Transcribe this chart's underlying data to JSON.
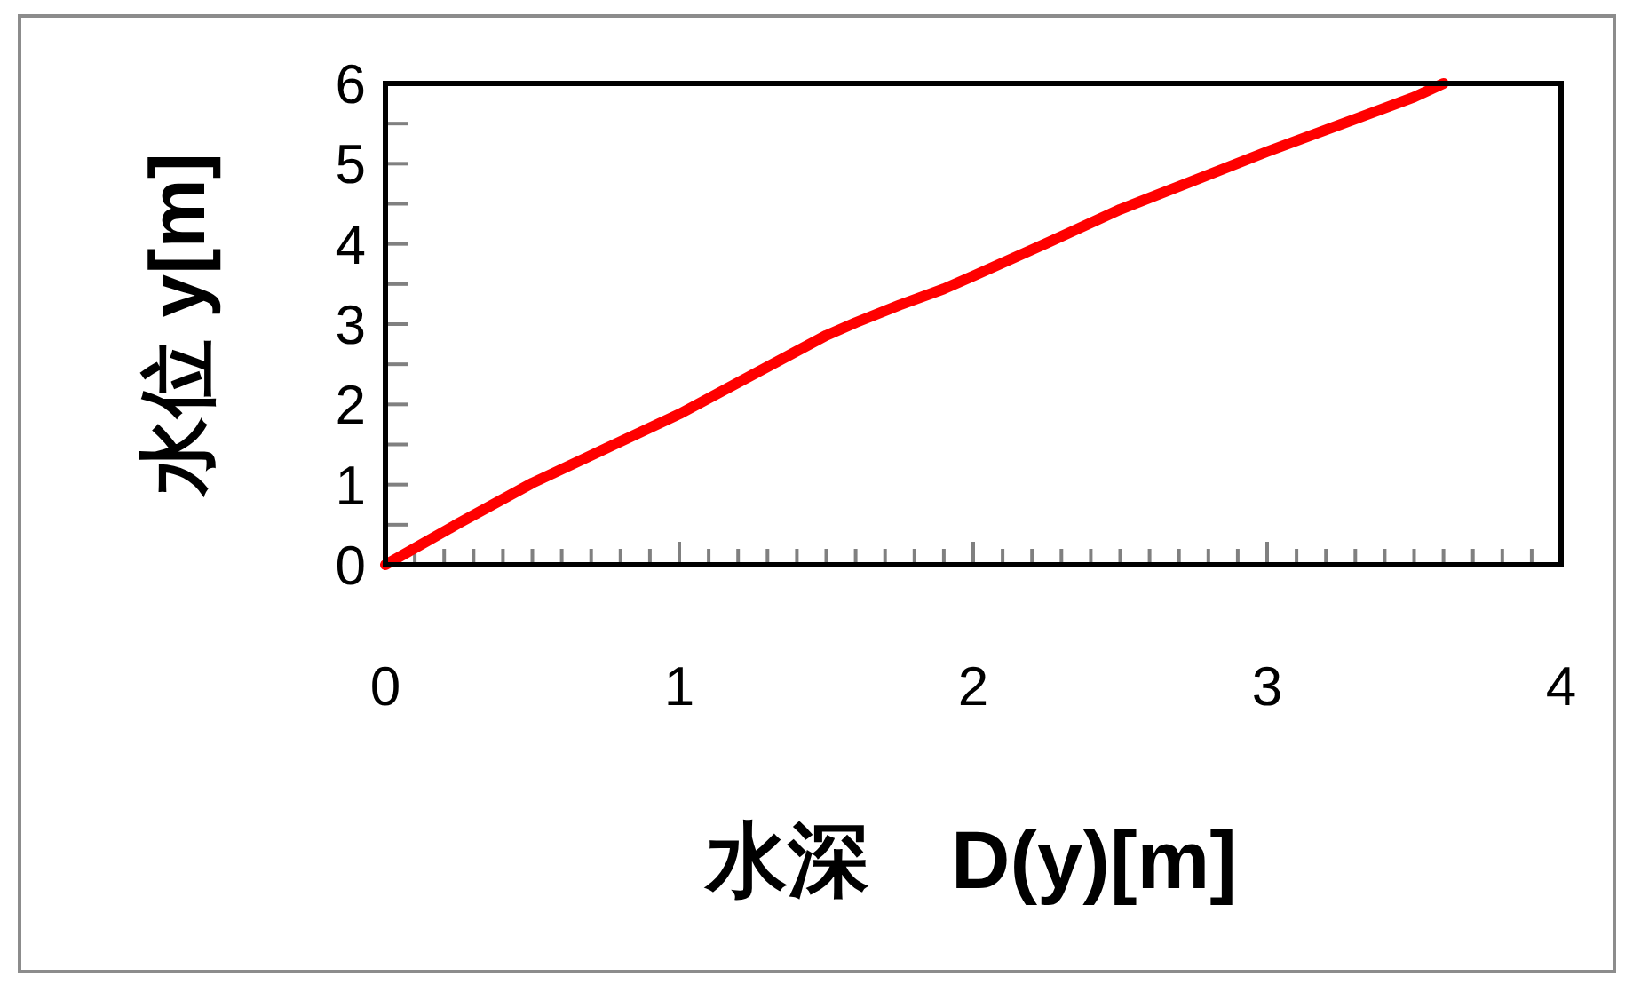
{
  "chart_data": {
    "type": "line",
    "xlabel": "水深　D(y)[m]",
    "ylabel": "水位 y[m]",
    "x": [
      0,
      0.25,
      0.5,
      0.75,
      1.0,
      1.25,
      1.5,
      1.6,
      1.75,
      1.9,
      2.0,
      2.25,
      2.5,
      2.75,
      3.0,
      3.25,
      3.5,
      3.6
    ],
    "series": [
      {
        "color": "#ff0000",
        "values": [
          0,
          0.52,
          1.02,
          1.45,
          1.88,
          2.37,
          2.86,
          3.02,
          3.24,
          3.44,
          3.6,
          4.01,
          4.43,
          4.79,
          5.15,
          5.49,
          5.83,
          6.0
        ]
      }
    ],
    "xlim": [
      0,
      4
    ],
    "ylim": [
      0,
      6
    ],
    "xticks": [
      0,
      {
        "value": 0.1,
        "label": null
      },
      {
        "value": 0.2,
        "label": null
      },
      {
        "value": 0.3,
        "label": null
      },
      {
        "value": 0.4,
        "label": null
      },
      {
        "value": 0.5,
        "label": null
      },
      {
        "value": 0.6,
        "label": null
      },
      {
        "value": 0.7,
        "label": null
      },
      {
        "value": 0.8,
        "label": null
      },
      {
        "value": 0.9,
        "label": null
      },
      1,
      {
        "value": 1.1,
        "label": null
      },
      {
        "value": 1.2,
        "label": null
      },
      {
        "value": 1.3,
        "label": null
      },
      {
        "value": 1.4,
        "label": null
      },
      {
        "value": 1.5,
        "label": null
      },
      {
        "value": 1.6,
        "label": null
      },
      {
        "value": 1.7,
        "label": null
      },
      {
        "value": 1.8,
        "label": null
      },
      {
        "value": 1.9,
        "label": null
      },
      2,
      {
        "value": 2.1,
        "label": null
      },
      {
        "value": 2.2,
        "label": null
      },
      {
        "value": 2.3,
        "label": null
      },
      {
        "value": 2.4,
        "label": null
      },
      {
        "value": 2.5,
        "label": null
      },
      {
        "value": 2.6,
        "label": null
      },
      {
        "value": 2.7,
        "label": null
      },
      {
        "value": 2.8,
        "label": null
      },
      {
        "value": 2.9,
        "label": null
      },
      3,
      {
        "value": 3.1,
        "label": null
      },
      {
        "value": 3.2,
        "label": null
      },
      {
        "value": 3.3,
        "label": null
      },
      {
        "value": 3.4,
        "label": null
      },
      {
        "value": 3.5,
        "label": null
      },
      {
        "value": 3.6,
        "label": null
      },
      {
        "value": 3.7,
        "label": null
      },
      {
        "value": 3.8,
        "label": null
      },
      {
        "value": 3.9,
        "label": null
      },
      4
    ],
    "yticks": [
      0,
      {
        "value": 0.5,
        "label": null
      },
      1,
      {
        "value": 1.5,
        "label": null
      },
      2,
      {
        "value": 2.5,
        "label": null
      },
      3,
      {
        "value": 3.5,
        "label": null
      },
      4,
      {
        "value": 4.5,
        "label": null
      },
      5,
      {
        "value": 5.5,
        "label": null
      },
      6
    ],
    "line_style": "solid"
  }
}
